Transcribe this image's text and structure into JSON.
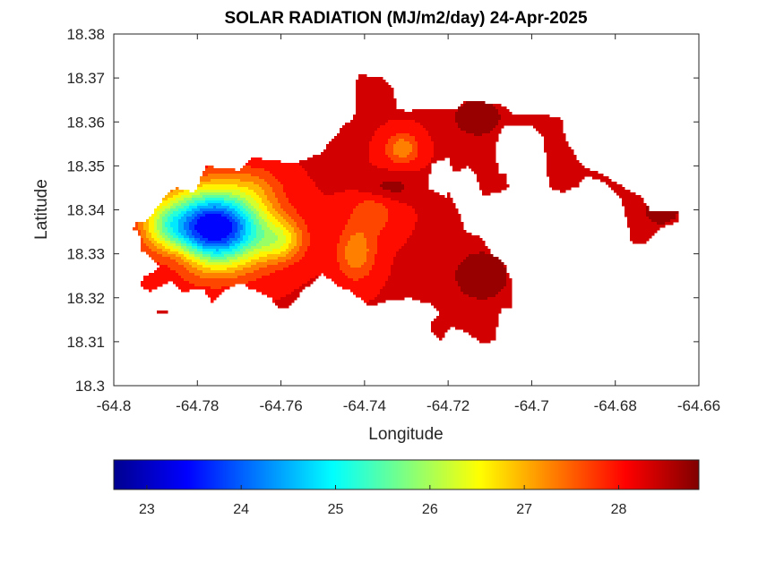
{
  "chart_data": {
    "type": "heatmap",
    "title": "SOLAR RADIATION (MJ/m2/day) 24-Apr-2025",
    "xlabel": "Longitude",
    "ylabel": "Latitude",
    "xlim": [
      -64.8,
      -64.66
    ],
    "ylim": [
      18.3,
      18.38
    ],
    "xticks": [
      -64.8,
      -64.78,
      -64.76,
      -64.74,
      -64.72,
      -64.7,
      -64.68,
      -64.66
    ],
    "xtick_labels": [
      "-64.8",
      "-64.78",
      "-64.76",
      "-64.74",
      "-64.72",
      "-64.7",
      "-64.68",
      "-64.66"
    ],
    "yticks": [
      18.3,
      18.31,
      18.32,
      18.33,
      18.34,
      18.35,
      18.36,
      18.37,
      18.38
    ],
    "ytick_labels": [
      "18.3",
      "18.31",
      "18.32",
      "18.33",
      "18.34",
      "18.35",
      "18.36",
      "18.37",
      "18.38"
    ],
    "colormap": "jet",
    "colorbar": {
      "placement": "bottom",
      "clim": [
        22.65,
        28.85
      ],
      "ticks": [
        23,
        24,
        25,
        26,
        27,
        28
      ],
      "tick_labels": [
        "23",
        "24",
        "25",
        "26",
        "27",
        "28"
      ]
    },
    "value_range_estimate": [
      23.3,
      28.8
    ],
    "hotspots": [
      {
        "lon": -64.774,
        "lat": 18.338,
        "value": 23.3
      },
      {
        "lon": -64.76,
        "lat": 18.333,
        "value": 24.2
      },
      {
        "lon": -64.785,
        "lat": 18.336,
        "value": 24.5
      },
      {
        "lon": -64.731,
        "lat": 18.354,
        "value": 27.2
      },
      {
        "lon": -64.713,
        "lat": 18.361,
        "value": 28.8
      },
      {
        "lon": -64.712,
        "lat": 18.325,
        "value": 28.8
      },
      {
        "lon": -64.669,
        "lat": 18.34,
        "value": 28.7
      }
    ]
  }
}
